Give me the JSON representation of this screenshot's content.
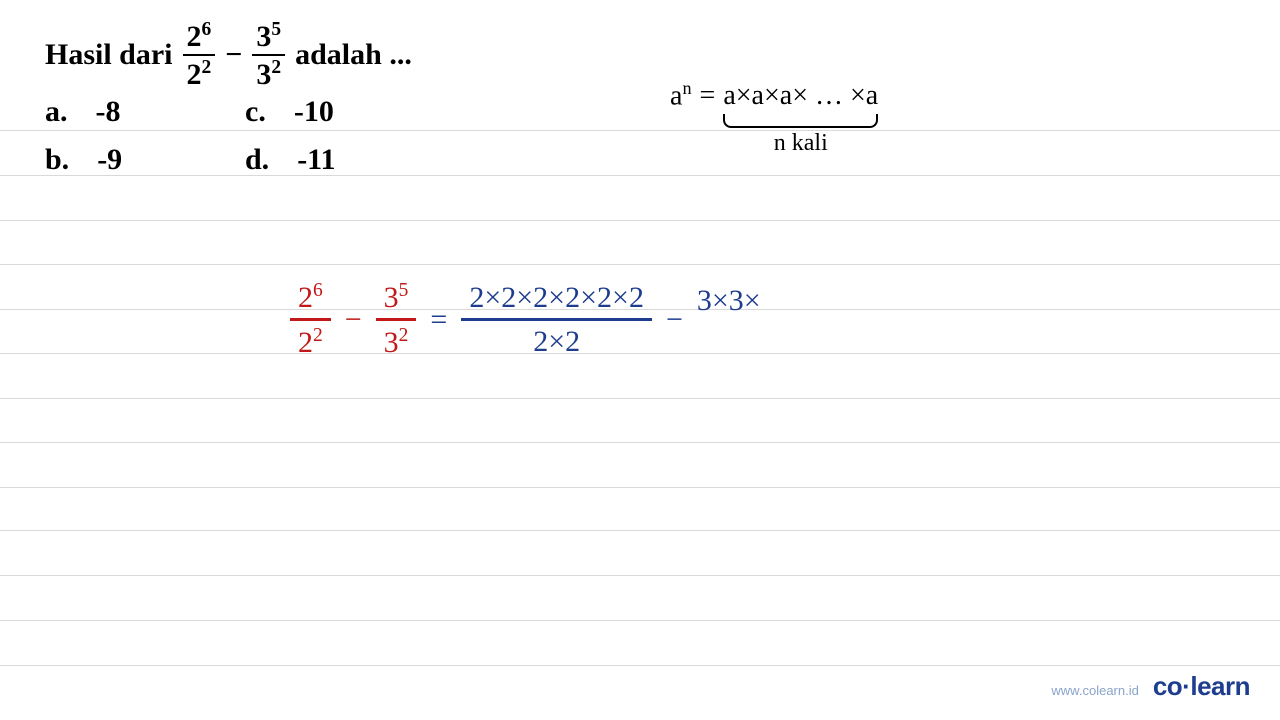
{
  "question": {
    "prefix": "Hasil dari",
    "frac1": {
      "num_base": "2",
      "num_exp": "6",
      "den_base": "2",
      "den_exp": "2"
    },
    "op": "−",
    "frac2": {
      "num_base": "3",
      "num_exp": "5",
      "den_base": "3",
      "den_exp": "2"
    },
    "suffix": "adalah ..."
  },
  "options": {
    "a": {
      "label": "a.",
      "value": "-8"
    },
    "b": {
      "label": "b.",
      "value": "-9"
    },
    "c": {
      "label": "c.",
      "value": "-10"
    },
    "d": {
      "label": "d.",
      "value": "-11"
    }
  },
  "formula": {
    "lhs_base": "a",
    "lhs_exp": "n",
    "eq": "=",
    "rhs": "a×a×a× … ×a",
    "sub": "n kali"
  },
  "work": {
    "left_frac1": {
      "num": "2",
      "num_exp": "6",
      "den": "2",
      "den_exp": "2"
    },
    "minus1": "−",
    "left_frac2": {
      "num": "3",
      "num_exp": "5",
      "den": "3",
      "den_exp": "2"
    },
    "eq": "=",
    "right_frac": {
      "num": "2×2×2×2×2×2",
      "den": "2×2"
    },
    "minus2": "−",
    "trailing": "3×3×"
  },
  "ruled_line_positions": [
    130,
    175,
    220,
    264,
    309,
    353,
    398,
    442,
    487,
    530,
    575,
    620,
    665
  ],
  "colors": {
    "rule": "#d9d9d9",
    "text": "#000000",
    "hw_red": "#c21818",
    "hw_blue": "#1e3d8f",
    "footer_url": "#89a3c9"
  },
  "footer": {
    "url": "www.colearn.id",
    "brand": "co·learn"
  }
}
